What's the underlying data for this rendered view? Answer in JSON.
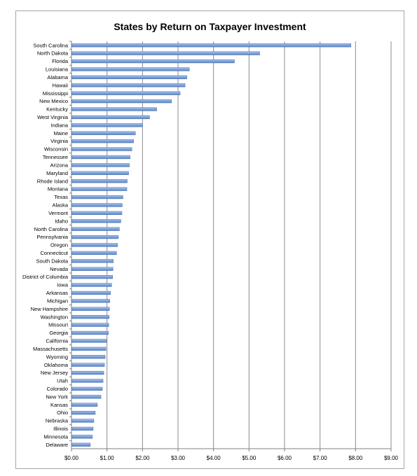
{
  "chart_data": {
    "type": "bar",
    "orientation": "horizontal",
    "title": "States by Return on Taxpayer Investment",
    "xlabel": "",
    "ylabel": "",
    "xlim": [
      0,
      9
    ],
    "x_ticks": [
      0,
      1,
      2,
      3,
      4,
      5,
      6,
      7,
      8,
      9
    ],
    "x_tick_labels": [
      "$0.00",
      "$1.00",
      "$2.00",
      "$3.00",
      "$4.00",
      "$5.00",
      "$6.00",
      "$7.00",
      "$8.00",
      "$9.00"
    ],
    "grid": "vertical major gridlines",
    "legend": "none",
    "bar_color": "#7a9ed6",
    "bar_edge_color": "#4a76b8",
    "categories": [
      "South Carolina",
      "North Dakota",
      "Florida",
      "Louisiana",
      "Alabama",
      "Hawaii",
      "Mississippi",
      "New Mexico",
      "Kentucky",
      "West Virginia",
      "Indiana",
      "Maine",
      "Virginia",
      "Wisconsin",
      "Tennessee",
      "Arizona",
      "Maryland",
      "Rhode Island",
      "Montana",
      "Texas",
      "Alaska",
      "Vermont",
      "Idaho",
      "North Carolina",
      "Pennsylvania",
      "Oregon",
      "Connecticut",
      "South Dakota",
      "Nevada",
      "District of Columbia",
      "Iowa",
      "Arkansas",
      "Michigan",
      "New Hampshire",
      "Washington",
      "Missouri",
      "Georgia",
      "California",
      "Massachusetts",
      "Wyoming",
      "Oklahoma",
      "New Jersey",
      "Utah",
      "Colorado",
      "New York",
      "Kansas",
      "Ohio",
      "Nebraska",
      "Illinois",
      "Minnesota",
      "Delaware"
    ],
    "values": [
      7.86,
      5.29,
      4.58,
      3.31,
      3.24,
      3.19,
      3.05,
      2.81,
      2.39,
      2.19,
      1.99,
      1.79,
      1.74,
      1.69,
      1.64,
      1.62,
      1.6,
      1.56,
      1.55,
      1.44,
      1.42,
      1.41,
      1.38,
      1.34,
      1.31,
      1.29,
      1.26,
      1.17,
      1.16,
      1.15,
      1.12,
      1.09,
      1.07,
      1.06,
      1.05,
      1.04,
      1.03,
      0.98,
      0.96,
      0.94,
      0.92,
      0.9,
      0.88,
      0.86,
      0.82,
      0.72,
      0.66,
      0.62,
      0.6,
      0.58,
      0.52
    ]
  }
}
